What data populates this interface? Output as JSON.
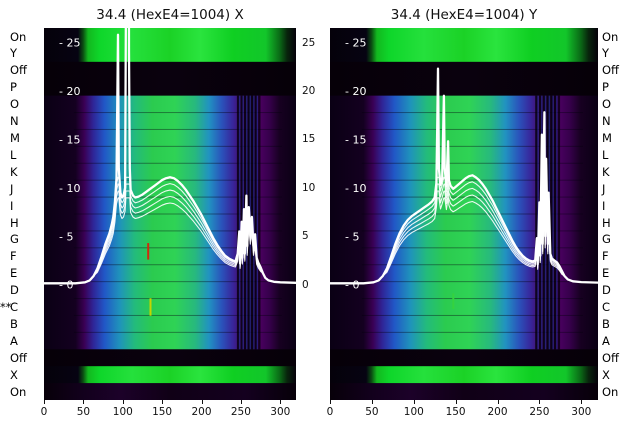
{
  "page": {
    "background": "#ffffff"
  },
  "row_axis": {
    "labels": [
      "On",
      "Y",
      "Off",
      "P",
      "O",
      "N",
      "M",
      "L",
      "K",
      "J",
      "I",
      "H",
      "G",
      "F",
      "E",
      "D",
      "C",
      "B",
      "A",
      "Off",
      "X",
      "On"
    ],
    "marker_text": "**",
    "marker_row_index": 16
  },
  "axes": {
    "y_tick_values": [
      25,
      20,
      15,
      10,
      5,
      0
    ],
    "gap_tick_labels": [
      "25",
      "20",
      "15",
      "10",
      "5",
      "0"
    ],
    "x_tick_values": [
      0,
      50,
      100,
      150,
      200,
      250,
      300
    ]
  },
  "line_style": {
    "color": "#ffffff",
    "cap": 11.8,
    "echo_factors": [
      0.94,
      0.88,
      0.82,
      0.76
    ]
  },
  "heatmap_style": {
    "base": "#08000c",
    "row_bands": [
      "green",
      "green",
      "dark",
      "dark",
      "beam",
      "beam",
      "beam",
      "beam",
      "beam",
      "beam",
      "beam",
      "beam",
      "beam",
      "beam",
      "beam",
      "beam",
      "beam",
      "beam",
      "beam",
      "dark",
      "green",
      "darkb"
    ],
    "gradients": {
      "beam": [
        [
          0,
          "#0a0014"
        ],
        [
          0.125,
          "#140020"
        ],
        [
          0.16,
          "#3a0054"
        ],
        [
          0.195,
          "#2f2496"
        ],
        [
          0.24,
          "#2157c6"
        ],
        [
          0.3,
          "#1f93bb"
        ],
        [
          0.36,
          "#23bb7c"
        ],
        [
          0.43,
          "#2bcb4f"
        ],
        [
          0.52,
          "#2fd355"
        ],
        [
          0.6,
          "#27b97e"
        ],
        [
          0.655,
          "#2192c1"
        ],
        [
          0.705,
          "#2a53bb"
        ],
        [
          0.75,
          "#38259a"
        ],
        [
          0.785,
          "#470b65"
        ],
        [
          0.82,
          "#2a0a3e"
        ],
        [
          0.855,
          "#4b0061"
        ],
        [
          0.895,
          "#36004b"
        ],
        [
          0.935,
          "#170021"
        ],
        [
          1,
          "#0a0014"
        ]
      ],
      "green": [
        [
          0,
          "#05010a"
        ],
        [
          0.135,
          "#060312"
        ],
        [
          0.155,
          "#0b4d12"
        ],
        [
          0.175,
          "#12b81f"
        ],
        [
          0.22,
          "#0ed62a"
        ],
        [
          0.35,
          "#25e03c"
        ],
        [
          0.5,
          "#1bd226"
        ],
        [
          0.62,
          "#2ae43e"
        ],
        [
          0.75,
          "#0fcf22"
        ],
        [
          0.88,
          "#12c62a"
        ],
        [
          0.935,
          "#0a6a16"
        ],
        [
          0.965,
          "#08240c"
        ],
        [
          1,
          "#05010a"
        ]
      ],
      "dark": [
        [
          0,
          "#060008"
        ],
        [
          0.5,
          "#0a010e"
        ],
        [
          1,
          "#060008"
        ]
      ],
      "darkb": [
        [
          0,
          "#070009"
        ],
        [
          0.15,
          "#12001c"
        ],
        [
          0.3,
          "#1c0129"
        ],
        [
          0.5,
          "#100016"
        ],
        [
          0.8,
          "#14001f"
        ],
        [
          1,
          "#070009"
        ]
      ]
    },
    "stripes": [
      {
        "x": 245,
        "w": 2.3,
        "color": "#04000a",
        "op": 0.8
      },
      {
        "x": 249.5,
        "w": 2.3,
        "color": "#04000a",
        "op": 0.8
      },
      {
        "x": 254,
        "w": 2.3,
        "color": "#04000a",
        "op": 0.8
      },
      {
        "x": 258.5,
        "w": 2.3,
        "color": "#04000a",
        "op": 0.8
      },
      {
        "x": 263,
        "w": 2.3,
        "color": "#04000a",
        "op": 0.8
      },
      {
        "x": 267.5,
        "w": 2.3,
        "color": "#04000a",
        "op": 0.8
      },
      {
        "x": 272,
        "w": 2.3,
        "color": "#04000a",
        "op": 0.75
      },
      {
        "x": 247.5,
        "w": 1.4,
        "color": "#1c2f92",
        "op": 0.6
      },
      {
        "x": 252,
        "w": 1.4,
        "color": "#1c2f92",
        "op": 0.6
      },
      {
        "x": 256.5,
        "w": 1.4,
        "color": "#1c2f92",
        "op": 0.6
      },
      {
        "x": 261,
        "w": 1.4,
        "color": "#1c2f92",
        "op": 0.6
      },
      {
        "x": 265.5,
        "w": 1.4,
        "color": "#1c2f92",
        "op": 0.6
      },
      {
        "x": 270,
        "w": 1.4,
        "color": "#1c2f92",
        "op": 0.6
      }
    ]
  },
  "chart_data": [
    {
      "id": "x",
      "type": "heatmap",
      "title": "34.4 (HexE4=1004) X",
      "x_max": 320,
      "x_ticks": [
        0,
        50,
        100,
        150,
        200,
        250,
        300
      ],
      "y_tick_labels": [
        "- 25",
        "- 20",
        "- 15",
        "- 10",
        "- 5",
        "- 0"
      ],
      "annotations": [
        {
          "x": 131,
          "v_top": 4.3,
          "v_bot": 2.6,
          "color": "#cf2a10"
        },
        {
          "x": 134,
          "v_top": -1.4,
          "v_bot": -3.2,
          "color": "#c6d400"
        }
      ],
      "profile": [
        [
          0,
          0.15
        ],
        [
          40,
          0.15
        ],
        [
          52,
          0.25
        ],
        [
          58,
          0.45
        ],
        [
          63,
          0.9
        ],
        [
          68,
          1.7
        ],
        [
          73,
          2.9
        ],
        [
          78,
          4.2
        ],
        [
          83,
          5.3
        ],
        [
          86,
          6.2
        ],
        [
          88,
          7.0
        ],
        [
          90,
          8.5
        ],
        [
          92,
          11.0
        ],
        [
          94,
          25.8
        ],
        [
          95,
          12.0
        ],
        [
          97,
          9.5
        ],
        [
          99,
          9.0
        ],
        [
          101,
          9.2
        ],
        [
          103,
          10.0
        ],
        [
          104,
          28.0
        ],
        [
          105,
          44.0
        ],
        [
          106,
          30.0
        ],
        [
          106.5,
          44.0
        ],
        [
          107.5,
          44.0
        ],
        [
          108,
          24.0
        ],
        [
          109,
          12.0
        ],
        [
          110,
          9.8
        ],
        [
          113,
          9.2
        ],
        [
          116,
          9.0
        ],
        [
          120,
          9.1
        ],
        [
          125,
          9.3
        ],
        [
          130,
          9.6
        ],
        [
          135,
          9.9
        ],
        [
          140,
          10.2
        ],
        [
          145,
          10.5
        ],
        [
          150,
          10.8
        ],
        [
          155,
          11.0
        ],
        [
          160,
          11.1
        ],
        [
          165,
          11.0
        ],
        [
          170,
          10.7
        ],
        [
          175,
          10.3
        ],
        [
          180,
          9.8
        ],
        [
          185,
          9.2
        ],
        [
          190,
          8.6
        ],
        [
          195,
          7.9
        ],
        [
          200,
          7.2
        ],
        [
          205,
          6.4
        ],
        [
          210,
          5.6
        ],
        [
          215,
          4.8
        ],
        [
          220,
          4.1
        ],
        [
          225,
          3.5
        ],
        [
          230,
          3.0
        ],
        [
          235,
          2.7
        ],
        [
          240,
          2.5
        ],
        [
          243,
          2.4
        ],
        [
          246,
          3.2
        ],
        [
          248,
          5.5
        ],
        [
          249,
          2.2
        ],
        [
          251,
          6.5
        ],
        [
          252,
          2.8
        ],
        [
          254,
          7.8
        ],
        [
          255,
          3.2
        ],
        [
          257,
          9.2
        ],
        [
          258,
          4.0
        ],
        [
          260,
          8.0
        ],
        [
          262,
          5.5
        ],
        [
          264,
          7.0
        ],
        [
          266,
          4.0
        ],
        [
          268,
          5.2
        ],
        [
          270,
          2.8
        ],
        [
          272,
          2.3
        ],
        [
          275,
          1.8
        ],
        [
          278,
          1.2
        ],
        [
          281,
          0.7
        ],
        [
          285,
          0.45
        ],
        [
          292,
          0.3
        ],
        [
          300,
          0.25
        ],
        [
          320,
          0.2
        ]
      ]
    },
    {
      "id": "y",
      "type": "heatmap",
      "title": "34.4 (HexE4=1004) Y",
      "x_max": 320,
      "x_ticks": [
        0,
        50,
        100,
        150,
        200,
        250,
        300
      ],
      "y_tick_labels": [
        "- 25",
        "- 20",
        "- 15",
        "- 10",
        "- 5",
        "- 0"
      ],
      "annotations": [
        {
          "x": 146,
          "v_top": -0.9,
          "v_bot": -2.5,
          "color": "#35d23f"
        }
      ],
      "profile": [
        [
          0,
          0.15
        ],
        [
          40,
          0.15
        ],
        [
          52,
          0.25
        ],
        [
          58,
          0.45
        ],
        [
          63,
          0.9
        ],
        [
          68,
          1.7
        ],
        [
          73,
          2.9
        ],
        [
          78,
          4.2
        ],
        [
          83,
          5.3
        ],
        [
          88,
          6.1
        ],
        [
          93,
          6.7
        ],
        [
          98,
          7.1
        ],
        [
          103,
          7.4
        ],
        [
          108,
          7.7
        ],
        [
          113,
          8.0
        ],
        [
          118,
          8.3
        ],
        [
          122,
          8.6
        ],
        [
          125,
          9.0
        ],
        [
          127,
          10.5
        ],
        [
          128,
          16.0
        ],
        [
          129,
          22.3
        ],
        [
          130,
          12.0
        ],
        [
          132,
          10.3
        ],
        [
          134,
          11.0
        ],
        [
          136,
          19.5
        ],
        [
          137,
          12.0
        ],
        [
          139,
          10.2
        ],
        [
          141,
          14.8
        ],
        [
          142,
          10.8
        ],
        [
          144,
          10.2
        ],
        [
          147,
          9.9
        ],
        [
          150,
          10.1
        ],
        [
          154,
          10.4
        ],
        [
          158,
          10.7
        ],
        [
          162,
          11.0
        ],
        [
          166,
          11.2
        ],
        [
          170,
          11.3
        ],
        [
          174,
          11.1
        ],
        [
          178,
          10.8
        ],
        [
          182,
          10.4
        ],
        [
          186,
          9.9
        ],
        [
          190,
          9.3
        ],
        [
          194,
          8.7
        ],
        [
          198,
          8.0
        ],
        [
          202,
          7.3
        ],
        [
          206,
          6.6
        ],
        [
          210,
          5.9
        ],
        [
          214,
          5.2
        ],
        [
          218,
          4.5
        ],
        [
          222,
          3.9
        ],
        [
          226,
          3.4
        ],
        [
          230,
          3.0
        ],
        [
          234,
          2.7
        ],
        [
          238,
          2.5
        ],
        [
          242,
          2.4
        ],
        [
          245,
          2.5
        ],
        [
          247,
          4.8
        ],
        [
          248,
          2.1
        ],
        [
          250,
          8.5
        ],
        [
          251,
          3.0
        ],
        [
          253,
          15.5
        ],
        [
          254,
          4.2
        ],
        [
          256,
          17.8
        ],
        [
          257,
          5.0
        ],
        [
          258,
          13.0
        ],
        [
          260,
          4.2
        ],
        [
          261,
          9.5
        ],
        [
          263,
          3.2
        ],
        [
          265,
          2.7
        ],
        [
          268,
          2.5
        ],
        [
          271,
          2.3
        ],
        [
          274,
          1.9
        ],
        [
          277,
          1.4
        ],
        [
          280,
          0.9
        ],
        [
          284,
          0.55
        ],
        [
          290,
          0.35
        ],
        [
          300,
          0.27
        ],
        [
          320,
          0.22
        ]
      ]
    }
  ]
}
